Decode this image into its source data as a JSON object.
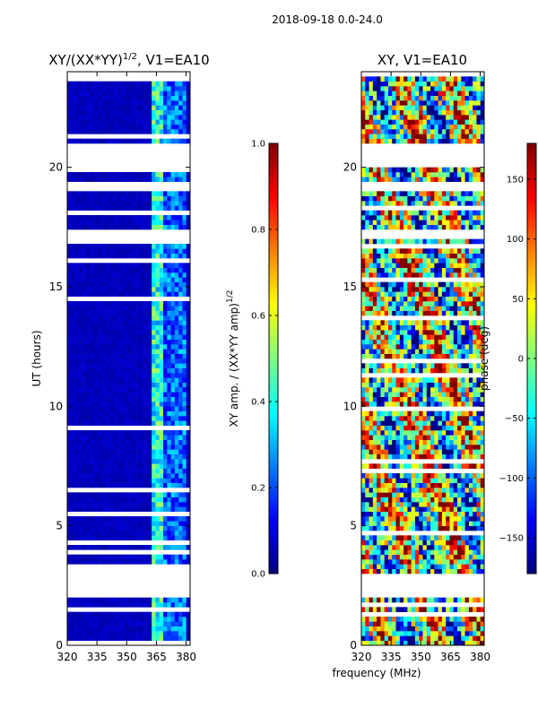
{
  "suptitle": "2018-09-18 0.0-24.0",
  "xlabel": "frequency (MHz)",
  "colors": {
    "jet": [
      "#00007f",
      "#0000ff",
      "#007fff",
      "#00ffff",
      "#7fff7f",
      "#ffff00",
      "#ff7f00",
      "#ff0000",
      "#7f0000"
    ]
  },
  "chart_data": [
    {
      "type": "heatmap",
      "title_main": "XY/(XX*YY)",
      "title_sup": "1/2",
      "title_rest": ", V1=EA10",
      "xlabel": "",
      "ylabel": "UT (hours)",
      "xlim": [
        320,
        382
      ],
      "ylim": [
        0,
        24
      ],
      "xticks": [
        320,
        335,
        350,
        365,
        380
      ],
      "yticks": [
        0,
        5,
        10,
        15,
        20
      ],
      "colorbar": {
        "label_main": "XY amp. / (XX*YY amp)",
        "label_sup": "1/2",
        "range": [
          0.0,
          1.0
        ],
        "ticks": [
          "0.0",
          "0.2",
          "0.4",
          "0.6",
          "0.8",
          "1.0"
        ]
      },
      "description": "mostly dark-blue amplitude (~0.05) with brighter band (~0.2-0.5) near 363-380 MHz",
      "gaps_hours": [
        [
          2.0,
          2.9
        ],
        [
          3.0,
          3.05
        ],
        [
          17.0,
          17.4
        ],
        [
          19.0,
          19.3
        ],
        [
          20.0,
          21.0
        ],
        [
          23.9,
          24.0
        ]
      ]
    },
    {
      "type": "heatmap",
      "title": "XY, V1=EA10",
      "xlabel": "",
      "ylabel": "",
      "xlim": [
        320,
        382
      ],
      "ylim": [
        0,
        24
      ],
      "xticks": [
        320,
        335,
        350,
        365,
        380
      ],
      "yticks": [
        0,
        5,
        10,
        15,
        20
      ],
      "colorbar": {
        "label": "phase (deg)",
        "range": [
          -180,
          180
        ],
        "ticks": [
          "−150",
          "−100",
          "−50",
          "0",
          "50",
          "100",
          "150"
        ]
      },
      "description": "noisy phase map spanning full -180..180 degree range",
      "gaps_hours": [
        [
          2.0,
          2.9
        ],
        [
          3.0,
          3.05
        ],
        [
          17.0,
          17.4
        ],
        [
          19.0,
          19.3
        ],
        [
          20.0,
          21.0
        ],
        [
          23.9,
          24.0
        ]
      ]
    }
  ]
}
